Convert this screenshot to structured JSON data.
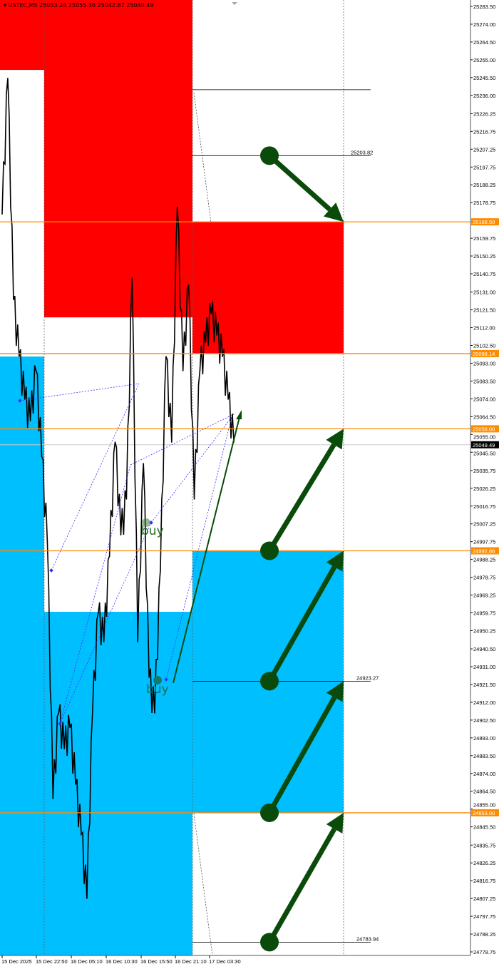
{
  "header": {
    "symbol": "USTEC,M5",
    "quote": "25053.24 25055.36 25042.87 25049.49"
  },
  "colors": {
    "resistance_zone": "#ff0000",
    "support_zone": "#00bfff",
    "level_line": "#ff8c00",
    "arrow": "#0a4a0a",
    "price_line": "#000000",
    "pattern_line": "#3333ff",
    "current_price_bg": "#000000"
  },
  "chart_data": {
    "type": "line",
    "title": "",
    "ylim": [
      24778.75,
      25283.5
    ],
    "y_ticks": [
      "25283.50",
      "25274.00",
      "25264.50",
      "25255.00",
      "25245.50",
      "25236.00",
      "25226.25",
      "25216.75",
      "25207.25",
      "25197.75",
      "25188.25",
      "25178.75",
      "25159.75",
      "25150.25",
      "25140.75",
      "25131.00",
      "25121.50",
      "25112.00",
      "25102.50",
      "25093.00",
      "25083.50",
      "25074.00",
      "25064.50",
      "25055.00",
      "25045.50",
      "25035.75",
      "25026.25",
      "25016.75",
      "25007.25",
      "24997.75",
      "24988.25",
      "24978.75",
      "24969.25",
      "24959.75",
      "24950.25",
      "24940.50",
      "24931.00",
      "24921.50",
      "24912.00",
      "24902.50",
      "24893.00",
      "24883.50",
      "24874.00",
      "24864.50",
      "24855.00",
      "24845.50",
      "24835.75",
      "24826.25",
      "24816.75",
      "24807.25",
      "24797.75",
      "24788.25",
      "24778.75"
    ],
    "x_ticks": [
      "15 Dec 2025",
      "15 Dec 22:50",
      "16 Dec 05:10",
      "16 Dec 10:30",
      "16 Dec 15:50",
      "16 Dec 21:10",
      "17 Dec 03:30"
    ],
    "price_series": [
      25172.7,
      25245.1,
      25127.0,
      25096.6,
      25073.8,
      25062.3,
      25089.0,
      25043.3,
      24997.6,
      24860.6,
      24906.3,
      24887.2,
      24898.6,
      24868.2,
      24841.5,
      24807.3,
      24906.3,
      24959.6,
      24944.3,
      24990.0,
      25050.9,
      25001.4,
      25020.5,
      25138.5,
      24944.3,
      25039.5,
      24925.3,
      24906.3,
      24982.4,
      25096.6,
      25050.9,
      25176.5,
      25089.0,
      25134.7,
      25020.5,
      25089.0,
      25104.2,
      25119.4,
      25108.0,
      25096.6,
      25073.8,
      25050.9
    ],
    "current_price": "25049.49",
    "levels": [
      {
        "label": "25168.50",
        "price": 25168.5
      },
      {
        "label": "25098.14",
        "price": 25098.14
      },
      {
        "label": "25058.00",
        "price": 25058.0
      },
      {
        "label": "24992.88",
        "price": 24992.88
      },
      {
        "label": "24853.00",
        "price": 24853.0
      }
    ],
    "target_lines": [
      {
        "label": "",
        "price": 25239.0
      },
      {
        "label": "25203.82",
        "price": 25203.82
      },
      {
        "label": "24923.27",
        "price": 24923.27
      },
      {
        "label": "24783.94",
        "price": 24783.94
      }
    ],
    "zones": [
      {
        "kind": "resistance",
        "column": 0,
        "top": 25283.5,
        "bottom": 25249.6
      },
      {
        "kind": "support",
        "column": 0,
        "top": 25096.6,
        "bottom": 24778.75
      },
      {
        "kind": "resistance",
        "column": 1,
        "top": 25283.5,
        "bottom": 25117.5
      },
      {
        "kind": "support",
        "column": 1,
        "top": 24960.3,
        "bottom": 24778.75
      },
      {
        "kind": "resistance",
        "column": 2,
        "top": 25168.5,
        "bottom": 25098.14
      },
      {
        "kind": "support",
        "column": 2,
        "top": 24992.88,
        "bottom": 24853.0
      }
    ],
    "arrows": [
      {
        "from": 25203.82,
        "to": 25168.5
      },
      {
        "from": 24992.88,
        "to": 25058.0
      },
      {
        "from": 24923.27,
        "to": 24992.88
      },
      {
        "from": 24853.0,
        "to": 24923.27
      },
      {
        "from": 24783.94,
        "to": 24853.0
      }
    ],
    "signals": [
      {
        "label": "buy"
      },
      {
        "label": "buy"
      }
    ]
  }
}
